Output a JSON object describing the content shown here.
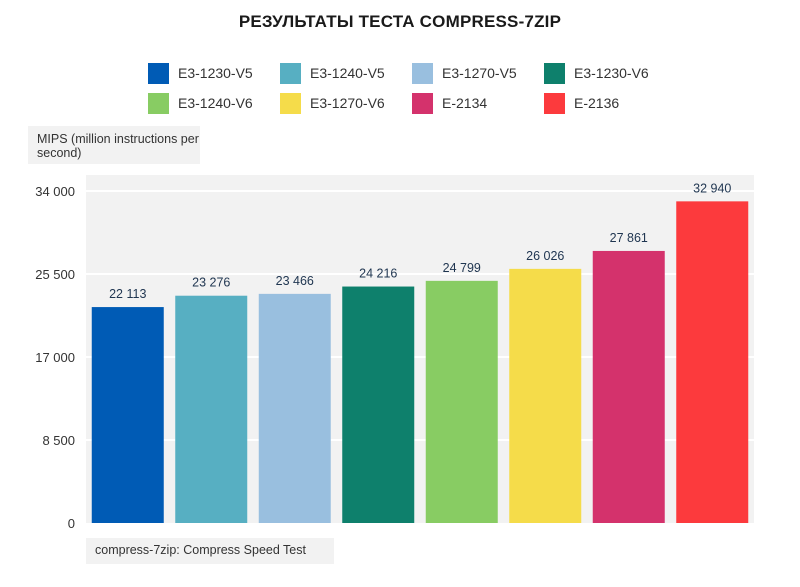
{
  "chart_data": {
    "type": "bar",
    "title": "РЕЗУЛЬТАТЫ ТЕСТА COMPRESS-7ZIP",
    "ylabel": "MIPS (million instructions per second)",
    "xlabel": "compress-7zip: Compress Speed Test",
    "ylim": [
      0,
      34000
    ],
    "yticks": [
      0,
      8500,
      17000,
      25500,
      34000
    ],
    "ytick_labels": [
      "0",
      "8 500",
      "17 000",
      "25 500",
      "34 000"
    ],
    "grid": true,
    "legend_position": "top",
    "series": [
      {
        "name": "E3-1230-V5",
        "value": 22113,
        "label": "22 113",
        "color": "#005bb5"
      },
      {
        "name": "E3-1240-V5",
        "value": 23276,
        "label": "23 276",
        "color": "#57afc2"
      },
      {
        "name": "E3-1270-V5",
        "value": 23466,
        "label": "23 466",
        "color": "#99bfdf"
      },
      {
        "name": "E3-1230-V6",
        "value": 24216,
        "label": "24 216",
        "color": "#0e806c"
      },
      {
        "name": "E3-1240-V6",
        "value": 24799,
        "label": "24 799",
        "color": "#88cc63"
      },
      {
        "name": "E3-1270-V6",
        "value": 26026,
        "label": "26 026",
        "color": "#f5dc4a"
      },
      {
        "name": "E-2134",
        "value": 27861,
        "label": "27 861",
        "color": "#d4326c"
      },
      {
        "name": "E-2136",
        "value": 32940,
        "label": "32 940",
        "color": "#fc3a3d"
      }
    ]
  }
}
